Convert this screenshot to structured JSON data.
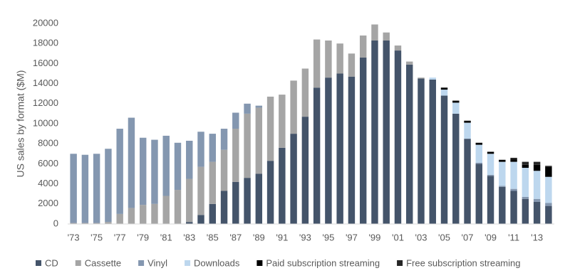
{
  "chart_data": {
    "type": "stacked_bar",
    "y_label": "US sales by format ($M)",
    "categories": [
      "'73",
      null,
      "'75",
      null,
      "'77",
      null,
      "'79",
      null,
      "'81",
      null,
      "'83",
      null,
      "'85",
      null,
      "'87",
      null,
      "'89",
      null,
      "'91",
      null,
      "'93",
      null,
      "'95",
      null,
      "'97",
      null,
      "'99",
      null,
      "'01",
      null,
      "'03",
      null,
      "'05",
      null,
      "'07",
      null,
      "'09",
      null,
      "'11",
      null,
      "'13",
      null
    ],
    "series": [
      {
        "name": "CD",
        "color": "#44546a",
        "values": [
          0,
          0,
          0,
          0,
          0,
          0,
          0,
          0,
          0,
          0,
          200,
          900,
          2000,
          3300,
          4200,
          4600,
          5000,
          6300,
          7600,
          9000,
          10700,
          13600,
          14600,
          15000,
          14700,
          16600,
          18300,
          18300,
          17300,
          15900,
          14500,
          14400,
          12800,
          11000,
          8500,
          6000,
          4800,
          3700,
          3300,
          2500,
          2200,
          1800
        ]
      },
      {
        "name": "Cassette",
        "color": "#a5a5a5",
        "values": [
          100,
          100,
          100,
          200,
          1000,
          1600,
          1900,
          2000,
          2800,
          3400,
          4300,
          4800,
          4200,
          4100,
          5300,
          6400,
          6600,
          6400,
          5300,
          5300,
          4800,
          4800,
          3700,
          3000,
          2300,
          2200,
          1600,
          800,
          500,
          300,
          100,
          0,
          0,
          0,
          0,
          0,
          0,
          0,
          0,
          0,
          0,
          0
        ]
      },
      {
        "name": "Vinyl",
        "color": "#8497b0",
        "values": [
          6900,
          6800,
          6900,
          7300,
          8500,
          9000,
          6700,
          6400,
          6000,
          4700,
          3800,
          3500,
          2800,
          2100,
          1600,
          1000,
          200,
          0,
          0,
          0,
          0,
          0,
          0,
          0,
          0,
          0,
          0,
          0,
          0,
          0,
          0,
          0,
          0,
          0,
          0,
          100,
          100,
          100,
          200,
          200,
          300,
          300
        ]
      },
      {
        "name": "Downloads",
        "color": "#bdd7ee",
        "values": [
          0,
          0,
          0,
          0,
          0,
          0,
          0,
          0,
          0,
          0,
          0,
          0,
          0,
          0,
          0,
          0,
          0,
          0,
          0,
          0,
          0,
          0,
          0,
          0,
          0,
          0,
          0,
          0,
          0,
          0,
          0,
          200,
          600,
          1100,
          1600,
          1800,
          2100,
          2400,
          2700,
          2900,
          2800,
          2600
        ]
      },
      {
        "name": "Paid subscription streaming",
        "color": "#000000",
        "values": [
          0,
          0,
          0,
          0,
          0,
          0,
          0,
          0,
          0,
          0,
          0,
          0,
          0,
          0,
          0,
          0,
          0,
          0,
          0,
          0,
          0,
          0,
          0,
          0,
          0,
          0,
          0,
          0,
          0,
          0,
          0,
          0,
          200,
          200,
          200,
          200,
          200,
          200,
          250,
          300,
          600,
          1000
        ]
      },
      {
        "name": "Free subscription streaming",
        "color": "#262626",
        "values": [
          0,
          0,
          0,
          0,
          0,
          0,
          0,
          0,
          0,
          0,
          0,
          0,
          0,
          0,
          0,
          0,
          0,
          0,
          0,
          0,
          0,
          0,
          0,
          0,
          0,
          0,
          0,
          0,
          0,
          0,
          0,
          0,
          0,
          0,
          0,
          0,
          0,
          0,
          150,
          300,
          300,
          100
        ]
      }
    ],
    "ylim": [
      0,
      20000
    ],
    "yticks": [
      0,
      2000,
      4000,
      6000,
      8000,
      10000,
      12000,
      14000,
      16000,
      18000,
      20000
    ],
    "grid": false
  }
}
